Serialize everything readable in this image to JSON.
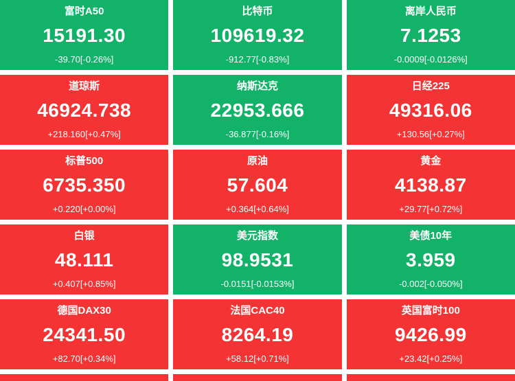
{
  "palette": {
    "up_background": "#f43434",
    "down_background": "#12b369",
    "text": "#ffffff"
  },
  "tiles": [
    {
      "name": "富时A50",
      "value": "15191.30",
      "change": "-39.70[-0.26%]",
      "trend": "down"
    },
    {
      "name": "比特币",
      "value": "109619.32",
      "change": "-912.77[-0.83%]",
      "trend": "down"
    },
    {
      "name": "离岸人民币",
      "value": "7.1253",
      "change": "-0.0009[-0.0126%]",
      "trend": "down"
    },
    {
      "name": "道琼斯",
      "value": "46924.738",
      "change": "+218.160[+0.47%]",
      "trend": "up"
    },
    {
      "name": "纳斯达克",
      "value": "22953.666",
      "change": "-36.877[-0.16%]",
      "trend": "down"
    },
    {
      "name": "日经225",
      "value": "49316.06",
      "change": "+130.56[+0.27%]",
      "trend": "up"
    },
    {
      "name": "标普500",
      "value": "6735.350",
      "change": "+0.220[+0.00%]",
      "trend": "up"
    },
    {
      "name": "原油",
      "value": "57.604",
      "change": "+0.364[+0.64%]",
      "trend": "up"
    },
    {
      "name": "黄金",
      "value": "4138.87",
      "change": "+29.77[+0.72%]",
      "trend": "up"
    },
    {
      "name": "白银",
      "value": "48.111",
      "change": "+0.407[+0.85%]",
      "trend": "up"
    },
    {
      "name": "美元指数",
      "value": "98.9531",
      "change": "-0.0151[-0.0153%]",
      "trend": "down"
    },
    {
      "name": "美债10年",
      "value": "3.959",
      "change": "-0.002[-0.050%]",
      "trend": "down"
    },
    {
      "name": "德国DAX30",
      "value": "24341.50",
      "change": "+82.70[+0.34%]",
      "trend": "up"
    },
    {
      "name": "法国CAC40",
      "value": "8264.19",
      "change": "+58.12[+0.71%]",
      "trend": "up"
    },
    {
      "name": "英国富时100",
      "value": "9426.99",
      "change": "+23.42[+0.25%]",
      "trend": "up"
    }
  ],
  "partial_row": [
    {
      "trend": "up"
    },
    {
      "trend": "up"
    },
    {
      "trend": "up"
    }
  ]
}
